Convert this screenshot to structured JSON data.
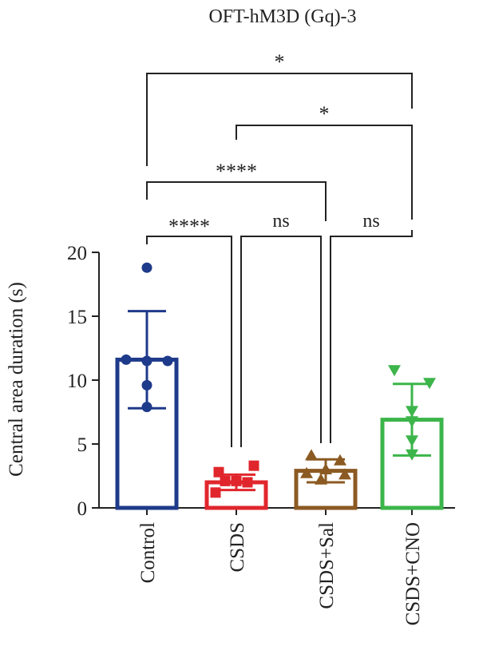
{
  "chart_data": {
    "type": "bar",
    "title": "OFT-hM3D (Gq)-3",
    "xlabel": "",
    "ylabel": "Central area duration (s)",
    "ylim": [
      0,
      20
    ],
    "yticks": [
      0,
      5,
      10,
      15,
      20
    ],
    "grid": false,
    "categories": [
      "Control",
      "CSDS",
      "CSDS+Sal",
      "CSDS+CNO"
    ],
    "colors": [
      "#1e3a8a",
      "#e0262c",
      "#8b5a22",
      "#3cb54a"
    ],
    "markers": [
      "circle",
      "square",
      "triangle-up",
      "triangle-down"
    ],
    "values": [
      11.6,
      2.0,
      2.9,
      6.9
    ],
    "error": [
      3.8,
      0.6,
      0.9,
      2.8
    ],
    "points": [
      [
        18.8,
        11.6,
        11.5,
        11.5,
        9.6,
        7.9
      ],
      [
        3.3,
        2.8,
        2.1,
        2.1,
        2.0,
        1.2
      ],
      [
        4.1,
        3.7,
        3.0,
        2.7,
        2.6,
        2.2
      ],
      [
        10.8,
        9.8,
        7.6,
        6.8,
        5.3,
        4.2
      ]
    ],
    "comparisons": [
      {
        "from": "Control",
        "to": "CSDS+CNO",
        "label": "*"
      },
      {
        "from": "CSDS",
        "to": "CSDS+CNO",
        "label": "*"
      },
      {
        "from": "Control",
        "to": "CSDS+Sal",
        "label": "****"
      },
      {
        "from": "Control",
        "to": "CSDS",
        "label": "****"
      },
      {
        "from": "CSDS",
        "to": "CSDS+Sal",
        "label": "ns"
      },
      {
        "from": "CSDS+Sal",
        "to": "CSDS+CNO",
        "label": "ns"
      }
    ]
  }
}
